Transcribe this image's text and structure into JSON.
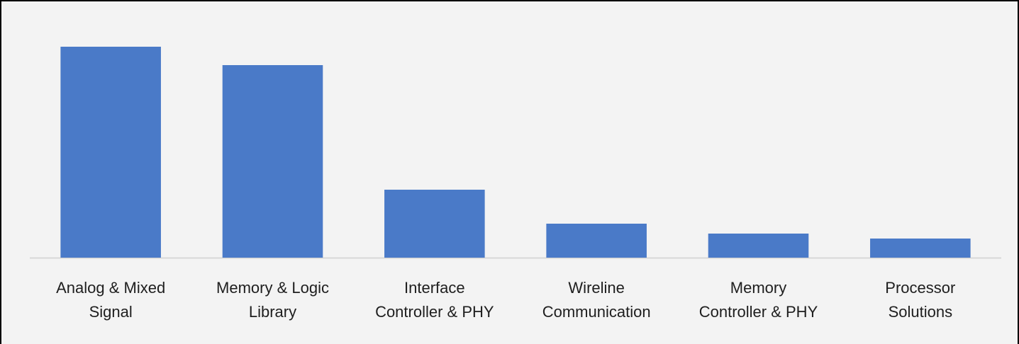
{
  "chart_data": {
    "type": "bar",
    "categories": [
      "Analog & Mixed\nSignal",
      "Memory & Logic\nLibrary",
      "Interface\nController & PHY",
      "Wireline\nCommunication",
      "Memory\nController & PHY",
      "Processor\nSolutions"
    ],
    "values": [
      29.8,
      27.2,
      9.6,
      4.8,
      3.4,
      2.7
    ],
    "color": "#4a7ac8"
  }
}
